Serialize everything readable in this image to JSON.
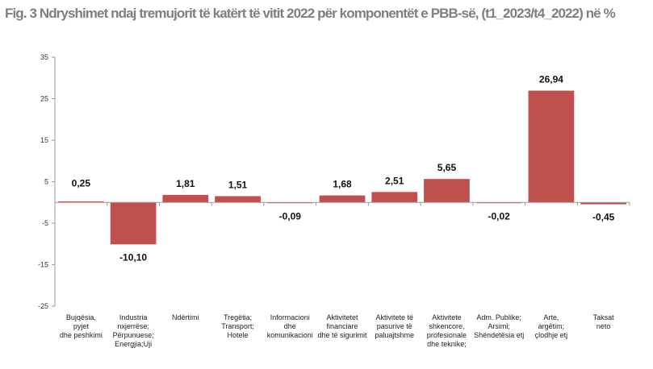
{
  "chart_data": {
    "type": "bar",
    "title": "Fig. 3 Ndryshimet ndaj tremujorit të katërt të vitit 2022 për komponentët e PBB-së, (t1_2023/t4_2022) në %",
    "xlabel": "",
    "ylabel": "",
    "ylim": [
      -25,
      35
    ],
    "yticks": [
      35,
      25,
      15,
      5,
      -5,
      -15,
      -25
    ],
    "categories": [
      [
        "Bujqësia,",
        "pyjet",
        "dhe peshkimi"
      ],
      [
        "Industria",
        "nxjerrëse;",
        "Përpunuese;",
        "Energjia;Uji"
      ],
      [
        "Ndërtimi"
      ],
      [
        "Tregëtia;",
        "Transport;",
        "Hotele"
      ],
      [
        "Informacioni",
        "dhe",
        "komunikacioni"
      ],
      [
        "Aktivitetet",
        "financiare",
        "dhe të sigurimit"
      ],
      [
        "Aktivitete të",
        "pasurive të",
        "paluajtshme"
      ],
      [
        "Aktivitete",
        "shkencore,",
        "profesionale",
        "dhe teknike;"
      ],
      [
        "Adm. Publike;",
        "Arsimi;",
        "Shëndetësia etj"
      ],
      [
        "Arte,",
        "argëtim;",
        "çlodhje etj"
      ],
      [
        "Taksat",
        "neto"
      ]
    ],
    "values": [
      0.25,
      -10.1,
      1.81,
      1.51,
      -0.09,
      1.68,
      2.51,
      5.65,
      -0.02,
      26.94,
      -0.45
    ],
    "data_labels": [
      "0,25",
      "-10,10",
      "1,81",
      "1,51",
      "-0,09",
      "1,68",
      "2,51",
      "5,65",
      "-0,02",
      "26,94",
      "-0,45"
    ],
    "bar_color": "#c0504d",
    "grid": false,
    "legend": "none"
  }
}
